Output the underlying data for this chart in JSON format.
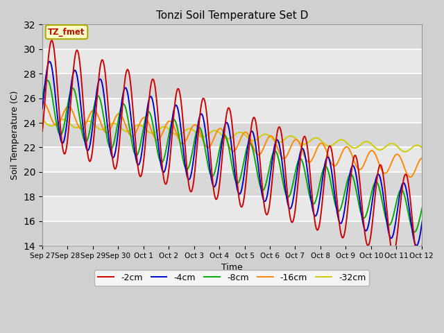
{
  "title": "Tonzi Soil Temperature Set D",
  "xlabel": "Time",
  "ylabel": "Soil Temperature (C)",
  "ylim": [
    14,
    32
  ],
  "yticks": [
    14,
    16,
    18,
    20,
    22,
    24,
    26,
    28,
    30,
    32
  ],
  "figure_bg": "#d0d0d0",
  "plot_bg": "#e0e0e0",
  "grid_color": "#ffffff",
  "legend_label": "TZ_fmet",
  "series_labels": [
    "-2cm",
    "-4cm",
    "-8cm",
    "-16cm",
    "-32cm"
  ],
  "series_colors": [
    "#cc0000",
    "#0000cc",
    "#00aa00",
    "#ff8800",
    "#cccc00"
  ],
  "line_width": 1.4,
  "x_tick_labels": [
    "Sep 27",
    "Sep 28",
    "Sep 29",
    "Sep 30",
    "Oct 1",
    "Oct 2",
    "Oct 3",
    "Oct 4",
    "Oct 5",
    "Oct 6",
    "Oct 7",
    "Oct 8",
    "Oct 9",
    "Oct 10",
    "Oct 11",
    "Oct 12"
  ],
  "num_days": 16,
  "points_per_day": 48
}
